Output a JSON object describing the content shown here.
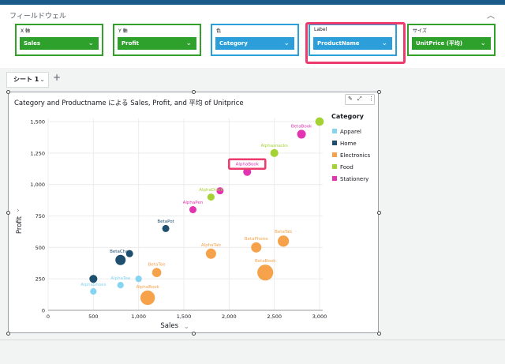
{
  "field_well": {
    "title": "フィールドウェル",
    "collapse_icon": "chevron-up-icon",
    "wells": [
      {
        "id": "x",
        "caption": "X 軸",
        "value": "Sales",
        "color": "green"
      },
      {
        "id": "y",
        "caption": "Y 軸",
        "value": "Profit",
        "color": "green"
      },
      {
        "id": "color",
        "caption": "色",
        "value": "Category",
        "color": "blue"
      },
      {
        "id": "label",
        "caption": "Label",
        "value": "ProductName",
        "color": "blue"
      },
      {
        "id": "size",
        "caption": "サイズ",
        "value": "UnitPrice (平均)",
        "color": "green"
      }
    ],
    "highlighted_well": "label"
  },
  "sheets": {
    "tabs": [
      {
        "label": "シート 1"
      }
    ],
    "add_icon": "plus-icon"
  },
  "visual": {
    "title": "Category and Productname による Sales, Profit, and 平均 of Unitprice",
    "tool_icons": [
      "pencil-icon",
      "expand-icon",
      "more-vertical-icon"
    ]
  },
  "colors": {
    "Apparel": "#85d4f0",
    "Home": "#1e4f6f",
    "Electronics": "#f5a24b",
    "Food": "#a4d233",
    "Stationery": "#e234b1",
    "highlight": "#ee3b6e"
  },
  "chart_data": {
    "type": "scatter",
    "title": "Category and Productname による Sales, Profit, and 平均 of Unitprice",
    "xlabel": "Sales",
    "ylabel": "Profit",
    "xlim": [
      0,
      3000
    ],
    "ylim": [
      0,
      1500
    ],
    "x_ticks": [
      0,
      500,
      1000,
      1500,
      2000,
      2500,
      3000
    ],
    "x_tick_labels": [
      "0",
      "500",
      "1,000",
      "1,500",
      "2,000",
      "2,500",
      "3,000"
    ],
    "y_ticks": [
      0,
      250,
      500,
      750,
      1000,
      1250,
      1500
    ],
    "y_tick_labels": [
      "0",
      "250",
      "500",
      "750",
      "1,000",
      "1,250",
      "1,500"
    ],
    "grid": true,
    "legend_title": "Category",
    "legend_position": "right",
    "series": [
      {
        "name": "Apparel",
        "points": [
          {
            "label": "AlphaShoes",
            "x": 500,
            "y": 150,
            "size": 10
          },
          {
            "label": "AlphaTee",
            "x": 800,
            "y": 200,
            "size": 10
          },
          {
            "label": "",
            "x": 1000,
            "y": 250,
            "size": 10
          }
        ]
      },
      {
        "name": "Home",
        "points": [
          {
            "label": "",
            "x": 500,
            "y": 250,
            "size": 15
          },
          {
            "label": "BetaChair",
            "x": 800,
            "y": 400,
            "size": 25
          },
          {
            "label": "",
            "x": 900,
            "y": 450,
            "size": 12
          },
          {
            "label": "BetaPot",
            "x": 1300,
            "y": 650,
            "size": 12
          }
        ]
      },
      {
        "name": "Electronics",
        "points": [
          {
            "label": "AlphaBook",
            "x": 1100,
            "y": 100,
            "size": 50
          },
          {
            "label": "BetaTee",
            "x": 1200,
            "y": 300,
            "size": 20
          },
          {
            "label": "AlphaTab",
            "x": 1800,
            "y": 450,
            "size": 25
          },
          {
            "label": "BetaPhone",
            "x": 2300,
            "y": 500,
            "size": 25
          },
          {
            "label": "BetaBook",
            "x": 2400,
            "y": 300,
            "size": 60
          },
          {
            "label": "BetaTab",
            "x": 2600,
            "y": 550,
            "size": 30
          }
        ]
      },
      {
        "name": "Food",
        "points": [
          {
            "label": "AlphaDrink",
            "x": 1800,
            "y": 900,
            "size": 12
          },
          {
            "label": "Alphasnacks",
            "x": 2500,
            "y": 1250,
            "size": 15
          },
          {
            "label": "",
            "x": 3000,
            "y": 1500,
            "size": 17
          }
        ]
      },
      {
        "name": "Stationery",
        "points": [
          {
            "label": "AlphaPen",
            "x": 1600,
            "y": 800,
            "size": 12
          },
          {
            "label": "",
            "x": 1900,
            "y": 950,
            "size": 12
          },
          {
            "label": "AlphaBook",
            "x": 2200,
            "y": 1100,
            "size": 15,
            "highlighted": true
          },
          {
            "label": "BetaBook",
            "x": 2800,
            "y": 1400,
            "size": 18
          }
        ]
      }
    ]
  }
}
